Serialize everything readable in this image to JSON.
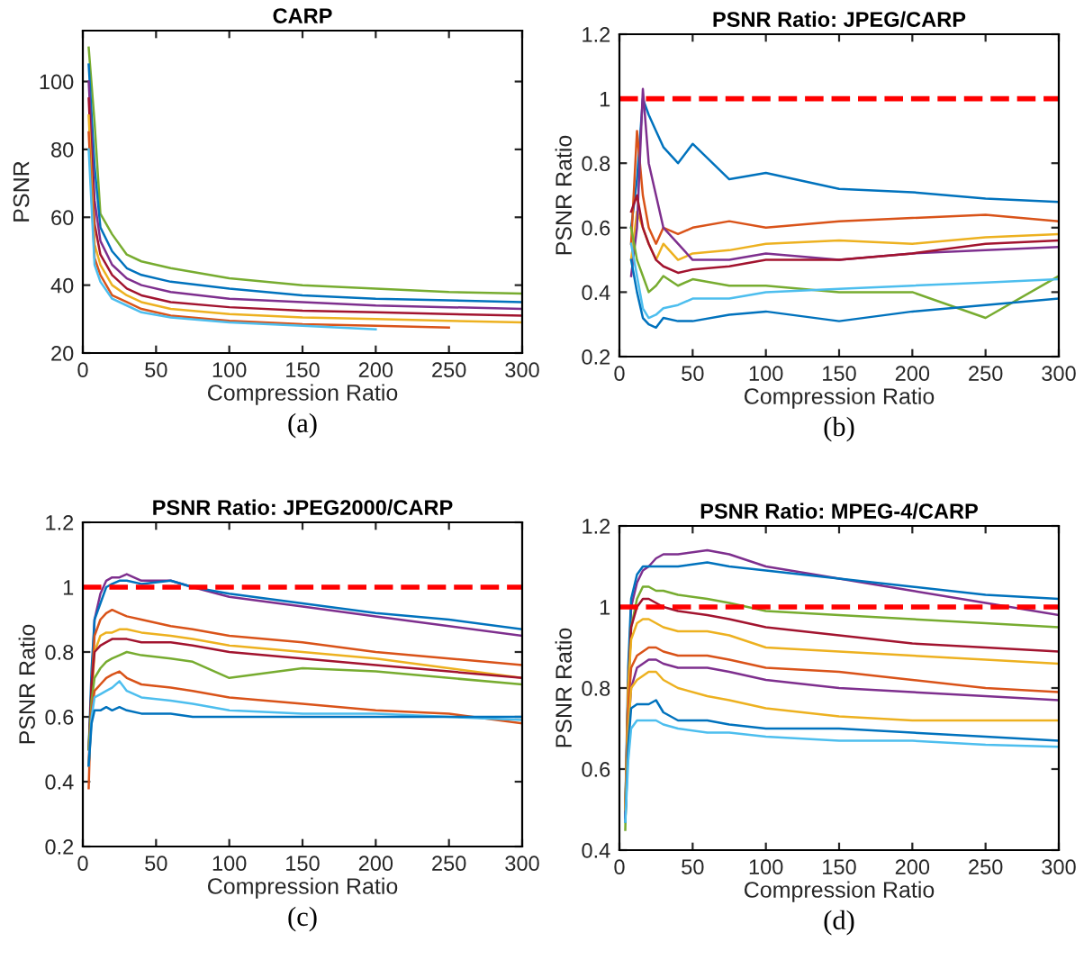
{
  "chart_data": [
    {
      "type": "line",
      "title": "CARP",
      "xlabel": "Compression Ratio",
      "ylabel": "PSNR",
      "annotations": [
        "(a)"
      ],
      "x": [
        4,
        8,
        12,
        20,
        30,
        40,
        60,
        100,
        150,
        200,
        250,
        300
      ],
      "xlim": [
        0,
        300
      ],
      "xticks": [
        0,
        50,
        100,
        150,
        200,
        250,
        300
      ],
      "ylim": [
        20,
        115
      ],
      "yticks": [
        20,
        40,
        60,
        80,
        100
      ],
      "grid": false,
      "legend": false,
      "line_style": "solid",
      "series": [
        {
          "color": "#77ac30",
          "values": [
            110,
            88,
            61,
            55,
            49,
            47,
            45,
            42,
            40,
            39,
            38,
            37.5
          ]
        },
        {
          "color": "#0072bd",
          "values": [
            105,
            75,
            57,
            50,
            45,
            43,
            41,
            39,
            37,
            36,
            35.5,
            35
          ]
        },
        {
          "color": "#7e2f8e",
          "values": [
            100,
            65,
            53,
            46,
            42,
            40,
            38,
            36,
            35,
            34,
            33.5,
            33
          ]
        },
        {
          "color": "#a2142f",
          "values": [
            95,
            58,
            49,
            43,
            39,
            37,
            35,
            33.5,
            32.5,
            32,
            31.5,
            31
          ]
        },
        {
          "color": "#edb120",
          "values": [
            90,
            52,
            46,
            40,
            37,
            35,
            33,
            31.5,
            30.5,
            30,
            29.5,
            29
          ]
        },
        {
          "color": "#d95319",
          "values": [
            85,
            48,
            43,
            37,
            35,
            33,
            31,
            29.5,
            28.5,
            28,
            27.5,
            null
          ]
        },
        {
          "color": "#4dbeee",
          "values": [
            80,
            46,
            41,
            36,
            34,
            32,
            30.5,
            29,
            28,
            27,
            null,
            null
          ]
        }
      ]
    },
    {
      "type": "line",
      "title": "PSNR Ratio: JPEG/CARP",
      "xlabel": "Compression Ratio",
      "ylabel": "PSNR Ratio",
      "annotations": [
        "(b)"
      ],
      "x": [
        8,
        12,
        16,
        20,
        25,
        30,
        40,
        50,
        75,
        100,
        150,
        200,
        250,
        300
      ],
      "xlim": [
        0,
        300
      ],
      "xticks": [
        0,
        50,
        100,
        150,
        200,
        250,
        300
      ],
      "ylim": [
        0.2,
        1.2
      ],
      "yticks": [
        0.2,
        0.4,
        0.6,
        0.8,
        1,
        1.2
      ],
      "grid": false,
      "legend": false,
      "line_style": "solid",
      "ref_lines": [
        {
          "axis": "y",
          "value": 1,
          "color": "#ff0000",
          "line_style": "dashed"
        }
      ],
      "series": [
        {
          "color": "#0072bd",
          "values": [
            0.6,
            0.75,
            1.0,
            0.95,
            0.9,
            0.85,
            0.8,
            0.86,
            0.75,
            0.77,
            0.72,
            0.71,
            0.69,
            0.68
          ]
        },
        {
          "color": "#d95319",
          "values": [
            0.55,
            0.9,
            0.7,
            0.6,
            0.55,
            0.6,
            0.58,
            0.6,
            0.62,
            0.6,
            0.62,
            0.63,
            0.64,
            0.62
          ]
        },
        {
          "color": "#edb120",
          "values": [
            0.5,
            0.65,
            0.6,
            0.55,
            0.5,
            0.55,
            0.5,
            0.52,
            0.53,
            0.55,
            0.56,
            0.55,
            0.57,
            0.58
          ]
        },
        {
          "color": "#7e2f8e",
          "values": [
            0.45,
            0.6,
            1.03,
            0.8,
            0.7,
            0.6,
            0.55,
            0.5,
            0.5,
            0.52,
            0.5,
            0.52,
            0.53,
            0.54
          ]
        },
        {
          "color": "#77ac30",
          "values": [
            0.6,
            0.5,
            0.45,
            0.4,
            0.42,
            0.45,
            0.42,
            0.44,
            0.42,
            0.42,
            0.4,
            0.4,
            0.32,
            0.45
          ]
        },
        {
          "color": "#4dbeee",
          "values": [
            0.55,
            0.45,
            0.35,
            0.32,
            0.33,
            0.35,
            0.36,
            0.38,
            0.38,
            0.4,
            0.41,
            0.42,
            0.43,
            0.44
          ]
        },
        {
          "color": "#a2142f",
          "values": [
            0.65,
            0.7,
            0.6,
            0.55,
            0.5,
            0.48,
            0.46,
            0.47,
            0.48,
            0.5,
            0.5,
            0.52,
            0.55,
            0.56
          ]
        },
        {
          "color": "#0072bd",
          "values": [
            0.5,
            0.4,
            0.32,
            0.3,
            0.29,
            0.32,
            0.31,
            0.31,
            0.33,
            0.34,
            0.31,
            0.34,
            0.36,
            0.38
          ]
        }
      ]
    },
    {
      "type": "line",
      "title": "PSNR Ratio: JPEG2000/CARP",
      "xlabel": "Compression Ratio",
      "ylabel": "PSNR Ratio",
      "annotations": [
        "(c)"
      ],
      "x": [
        4,
        6,
        8,
        12,
        16,
        20,
        25,
        30,
        40,
        60,
        75,
        100,
        150,
        200,
        250,
        300
      ],
      "xlim": [
        0,
        300
      ],
      "xticks": [
        0,
        50,
        100,
        150,
        200,
        250,
        300
      ],
      "ylim": [
        0.2,
        1.2
      ],
      "yticks": [
        0.2,
        0.4,
        0.6,
        0.8,
        1,
        1.2
      ],
      "grid": false,
      "legend": false,
      "line_style": "solid",
      "ref_lines": [
        {
          "axis": "y",
          "value": 1,
          "color": "#ff0000",
          "line_style": "dashed"
        }
      ],
      "series": [
        {
          "color": "#7e2f8e",
          "values": [
            0.45,
            0.7,
            0.9,
            0.98,
            1.02,
            1.03,
            1.03,
            1.04,
            1.02,
            1.02,
            1.0,
            0.97,
            0.94,
            0.91,
            0.88,
            0.85
          ]
        },
        {
          "color": "#0072bd",
          "values": [
            0.5,
            0.75,
            0.9,
            0.95,
            1.0,
            1.01,
            1.02,
            1.02,
            1.01,
            1.02,
            1.0,
            0.98,
            0.95,
            0.92,
            0.9,
            0.87
          ]
        },
        {
          "color": "#d95319",
          "values": [
            0.38,
            0.7,
            0.85,
            0.9,
            0.92,
            0.93,
            0.92,
            0.91,
            0.9,
            0.88,
            0.87,
            0.85,
            0.83,
            0.8,
            0.78,
            0.76
          ]
        },
        {
          "color": "#edb120",
          "values": [
            0.45,
            0.65,
            0.8,
            0.85,
            0.86,
            0.86,
            0.87,
            0.87,
            0.86,
            0.85,
            0.84,
            0.82,
            0.8,
            0.78,
            0.75,
            0.72
          ]
        },
        {
          "color": "#a2142f",
          "values": [
            0.5,
            0.7,
            0.8,
            0.82,
            0.83,
            0.84,
            0.84,
            0.84,
            0.83,
            0.83,
            0.82,
            0.8,
            0.78,
            0.76,
            0.74,
            0.72
          ]
        },
        {
          "color": "#77ac30",
          "values": [
            0.5,
            0.65,
            0.72,
            0.75,
            0.77,
            0.78,
            0.79,
            0.8,
            0.79,
            0.78,
            0.77,
            0.72,
            0.75,
            0.74,
            0.72,
            0.7
          ]
        },
        {
          "color": "#d95319",
          "values": [
            0.45,
            0.62,
            0.68,
            0.7,
            0.72,
            0.73,
            0.74,
            0.72,
            0.7,
            0.69,
            0.68,
            0.66,
            0.64,
            0.62,
            0.61,
            0.58
          ]
        },
        {
          "color": "#4dbeee",
          "values": [
            0.45,
            0.6,
            0.66,
            0.67,
            0.68,
            0.69,
            0.71,
            0.68,
            0.66,
            0.65,
            0.64,
            0.62,
            0.61,
            0.61,
            0.6,
            0.59
          ]
        },
        {
          "color": "#0072bd",
          "values": [
            0.45,
            0.58,
            0.62,
            0.62,
            0.63,
            0.62,
            0.63,
            0.62,
            0.61,
            0.61,
            0.6,
            0.6,
            0.6,
            0.6,
            0.6,
            0.6
          ]
        }
      ]
    },
    {
      "type": "line",
      "title": "PSNR Ratio: MPEG-4/CARP",
      "xlabel": "Compression Ratio",
      "ylabel": "PSNR Ratio",
      "annotations": [
        "(d)"
      ],
      "x": [
        4,
        6,
        8,
        12,
        16,
        20,
        25,
        30,
        40,
        60,
        75,
        100,
        150,
        200,
        250,
        300
      ],
      "xlim": [
        0,
        300
      ],
      "xticks": [
        0,
        50,
        100,
        150,
        200,
        250,
        300
      ],
      "ylim": [
        0.4,
        1.2
      ],
      "yticks": [
        0.4,
        0.6,
        0.8,
        1,
        1.2
      ],
      "grid": false,
      "legend": false,
      "line_style": "solid",
      "ref_lines": [
        {
          "axis": "y",
          "value": 1,
          "color": "#ff0000",
          "line_style": "dashed"
        }
      ],
      "series": [
        {
          "color": "#7e2f8e",
          "values": [
            0.5,
            0.8,
            1.0,
            1.06,
            1.09,
            1.1,
            1.12,
            1.13,
            1.13,
            1.14,
            1.13,
            1.1,
            1.07,
            1.04,
            1.01,
            0.98
          ]
        },
        {
          "color": "#0072bd",
          "values": [
            0.5,
            0.85,
            1.02,
            1.08,
            1.1,
            1.1,
            1.1,
            1.1,
            1.1,
            1.11,
            1.1,
            1.09,
            1.07,
            1.05,
            1.03,
            1.02
          ]
        },
        {
          "color": "#77ac30",
          "values": [
            0.45,
            0.8,
            0.95,
            1.02,
            1.05,
            1.05,
            1.04,
            1.04,
            1.03,
            1.02,
            1.01,
            0.99,
            0.98,
            0.97,
            0.96,
            0.95
          ]
        },
        {
          "color": "#a2142f",
          "values": [
            0.48,
            0.8,
            0.95,
            1.0,
            1.02,
            1.02,
            1.01,
            1.0,
            0.99,
            0.98,
            0.97,
            0.95,
            0.93,
            0.91,
            0.9,
            0.89
          ]
        },
        {
          "color": "#edb120",
          "values": [
            0.5,
            0.8,
            0.92,
            0.96,
            0.97,
            0.97,
            0.96,
            0.95,
            0.94,
            0.94,
            0.93,
            0.9,
            0.89,
            0.88,
            0.87,
            0.86
          ]
        },
        {
          "color": "#d95319",
          "values": [
            0.5,
            0.75,
            0.85,
            0.88,
            0.89,
            0.9,
            0.9,
            0.89,
            0.88,
            0.88,
            0.87,
            0.85,
            0.84,
            0.82,
            0.8,
            0.79
          ]
        },
        {
          "color": "#7e2f8e",
          "values": [
            0.48,
            0.7,
            0.8,
            0.85,
            0.86,
            0.87,
            0.87,
            0.86,
            0.85,
            0.85,
            0.84,
            0.82,
            0.8,
            0.79,
            0.78,
            0.77
          ]
        },
        {
          "color": "#edb120",
          "values": [
            0.5,
            0.7,
            0.8,
            0.82,
            0.83,
            0.84,
            0.84,
            0.82,
            0.8,
            0.78,
            0.77,
            0.75,
            0.73,
            0.72,
            0.72,
            0.72
          ]
        },
        {
          "color": "#0072bd",
          "values": [
            0.47,
            0.66,
            0.75,
            0.76,
            0.76,
            0.76,
            0.77,
            0.74,
            0.72,
            0.72,
            0.71,
            0.7,
            0.7,
            0.69,
            0.68,
            0.67
          ]
        },
        {
          "color": "#4dbeee",
          "values": [
            0.47,
            0.62,
            0.7,
            0.72,
            0.72,
            0.72,
            0.72,
            0.71,
            0.7,
            0.69,
            0.69,
            0.68,
            0.67,
            0.67,
            0.66,
            0.655
          ]
        }
      ]
    }
  ]
}
